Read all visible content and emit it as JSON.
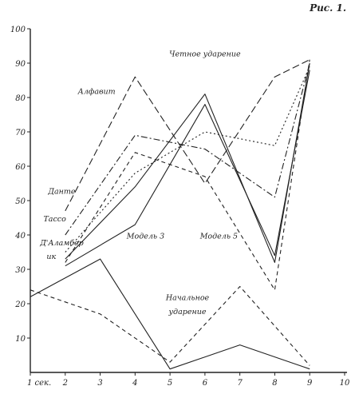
{
  "figure_label": "Рис. 1.",
  "chart_data": {
    "type": "line",
    "title": "",
    "xlabel": "",
    "ylabel": "",
    "xlim": [
      1,
      10
    ],
    "ylim": [
      0,
      100
    ],
    "x_tick_labels": [
      "1 сек.",
      "2",
      "3",
      "4",
      "5",
      "6",
      "7",
      "8",
      "9",
      "10"
    ],
    "y_ticks": [
      10,
      20,
      30,
      40,
      50,
      60,
      70,
      80,
      90,
      100
    ],
    "grid": false,
    "series": [
      {
        "name": "Алфавит",
        "style": "dashed",
        "x": [
          2,
          4,
          6,
          8,
          9
        ],
        "y": [
          47,
          86,
          55,
          86,
          91
        ]
      },
      {
        "name": "Данте",
        "style": "dashdot",
        "x": [
          2,
          4,
          6,
          8,
          9
        ],
        "y": [
          40,
          69,
          65,
          51,
          90
        ]
      },
      {
        "name": "Тассо",
        "style": "dotted",
        "x": [
          2,
          4,
          6,
          8,
          9
        ],
        "y": [
          35,
          58,
          70,
          66,
          89
        ]
      },
      {
        "name": "Д'Аламбер",
        "style": "dashed2",
        "x": [
          2,
          4,
          6,
          8,
          9
        ],
        "y": [
          32,
          64,
          57,
          24,
          91
        ]
      },
      {
        "name": "Модель 3",
        "style": "solid",
        "x": [
          2,
          4,
          6,
          8,
          9
        ],
        "y": [
          33,
          54,
          81,
          32,
          90
        ]
      },
      {
        "name": "Модель 5",
        "style": "solid",
        "x": [
          2,
          4,
          6,
          8,
          9
        ],
        "y": [
          31,
          43,
          78,
          34,
          88
        ]
      },
      {
        "name": "Начальное ударение",
        "style": "dashed2",
        "x": [
          1,
          3,
          5,
          7,
          9
        ],
        "y": [
          24,
          17,
          3,
          25,
          2
        ]
      },
      {
        "name": "Начальное ударение",
        "style": "solid",
        "x": [
          1,
          3,
          5,
          7,
          9
        ],
        "y": [
          22,
          33,
          1,
          8,
          1
        ]
      }
    ],
    "annotations": [
      {
        "text": "Четное ударение",
        "x": 6,
        "y": 92
      },
      {
        "text": "Алфавит",
        "x": 2.9,
        "y": 81
      },
      {
        "text": "Данте",
        "x": 1.9,
        "y": 52
      },
      {
        "text": "Тассо",
        "x": 1.7,
        "y": 44
      },
      {
        "text": "Д'Аламбер",
        "x": 1.9,
        "y": 37
      },
      {
        "text": "ик",
        "x": 1.6,
        "y": 33
      },
      {
        "text": "Модель 3",
        "x": 4.3,
        "y": 39
      },
      {
        "text": "Модель 5",
        "x": 6.4,
        "y": 39
      },
      {
        "text": "Начальное",
        "x": 5.5,
        "y": 21
      },
      {
        "text": "ударение",
        "x": 5.5,
        "y": 17
      }
    ]
  }
}
